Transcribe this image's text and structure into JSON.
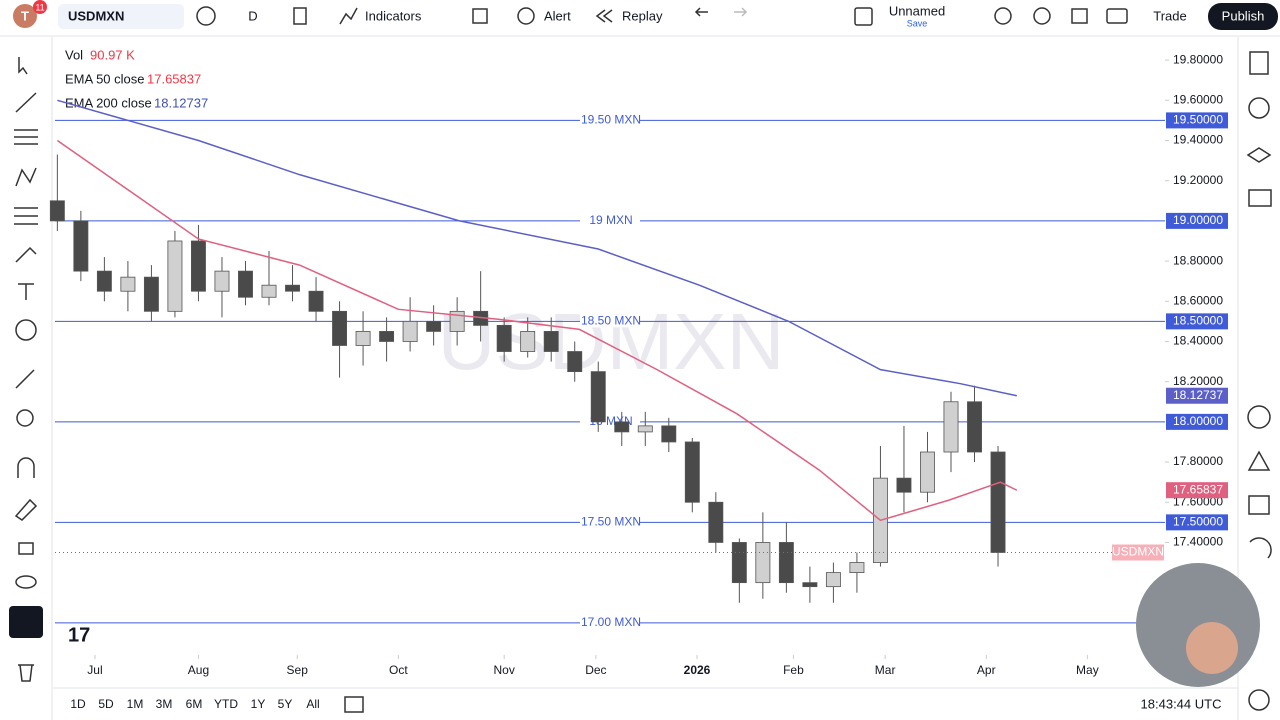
{
  "toolbar": {
    "avatar": "T",
    "badge": "11",
    "symbol": "USDMXN",
    "interval": "D",
    "indicators": "Indicators",
    "alert": "Alert",
    "replay": "Replay",
    "layout_name": "Unnamed",
    "save": "Save",
    "trade": "Trade",
    "publish": "Publish"
  },
  "legend": {
    "vol_label": "Vol",
    "vol_value": "90.97 K",
    "ema50_label": "EMA 50 close",
    "ema50_value": "17.65837",
    "ema200_label": "EMA 200 close",
    "ema200_value": "18.12737"
  },
  "chart_data": {
    "type": "candlestick",
    "watermark": "USDMXN",
    "last_label": "USDMXN",
    "xlim": [
      -0.1,
      47.1
    ],
    "ylim": [
      16.84,
      19.9
    ],
    "xticks": [
      {
        "value": 1.6,
        "label": "Jul"
      },
      {
        "value": 6.0,
        "label": "Aug"
      },
      {
        "value": 10.2,
        "label": "Sep"
      },
      {
        "value": 14.5,
        "label": "Oct"
      },
      {
        "value": 19.0,
        "label": "Nov"
      },
      {
        "value": 22.9,
        "label": "Dec"
      },
      {
        "value": 27.2,
        "label": "2026"
      },
      {
        "value": 31.3,
        "label": "Feb"
      },
      {
        "value": 35.2,
        "label": "Mar"
      },
      {
        "value": 39.5,
        "label": "Apr"
      },
      {
        "value": 43.8,
        "label": "May"
      }
    ],
    "yticks": [
      {
        "value": 19.8,
        "label": "19.80000"
      },
      {
        "value": 19.6,
        "label": "19.60000"
      },
      {
        "value": 19.4,
        "label": "19.40000"
      },
      {
        "value": 19.2,
        "label": "19.20000"
      },
      {
        "value": 18.8,
        "label": "18.80000"
      },
      {
        "value": 18.6,
        "label": "18.60000"
      },
      {
        "value": 18.4,
        "label": "18.40000"
      },
      {
        "value": 18.2,
        "label": "18.20000"
      },
      {
        "value": 17.8,
        "label": "17.80000"
      },
      {
        "value": 17.6,
        "label": "17.60000"
      },
      {
        "value": 17.4,
        "label": "17.40000"
      }
    ],
    "levels": [
      {
        "value": 19.5,
        "label": "19.50 MXN",
        "axis_label": "19.50000"
      },
      {
        "value": 19.0,
        "label": "19 MXN",
        "axis_label": "19.00000"
      },
      {
        "value": 18.5,
        "label": "18.50 MXN",
        "axis_label": "18.50000"
      },
      {
        "value": 18.0,
        "label": "18 MXN",
        "axis_label": "18.00000"
      },
      {
        "value": 17.5,
        "label": "17.50 MXN",
        "axis_label": "17.50000"
      },
      {
        "value": 17.0,
        "label": "17.00 MXN",
        "axis_label": null
      }
    ],
    "level_color": "#3f5bd8",
    "up_color": "#d0d0d0",
    "down_color": "#4a4a4a",
    "open": [
      19.1,
      19.0,
      18.75,
      18.65,
      18.72,
      18.55,
      18.9,
      18.65,
      18.75,
      18.62,
      18.68,
      18.65,
      18.55,
      18.38,
      18.45,
      18.4,
      18.5,
      18.45,
      18.55,
      18.48,
      18.35,
      18.45,
      18.35,
      18.25,
      18.0,
      17.95,
      17.98,
      17.9,
      17.6,
      17.4,
      17.2,
      17.4,
      17.2,
      17.18,
      17.25,
      17.3,
      17.72,
      17.65,
      17.85,
      18.1,
      17.85
    ],
    "high": [
      19.33,
      19.05,
      18.82,
      18.8,
      18.78,
      18.95,
      18.98,
      18.82,
      18.8,
      18.85,
      18.78,
      18.72,
      18.6,
      18.55,
      18.52,
      18.62,
      18.58,
      18.62,
      18.75,
      18.52,
      18.52,
      18.52,
      18.4,
      18.3,
      18.05,
      18.05,
      18.02,
      17.92,
      17.65,
      17.42,
      17.55,
      17.5,
      17.28,
      17.3,
      17.35,
      17.88,
      17.98,
      17.95,
      18.15,
      18.18,
      17.88
    ],
    "low": [
      18.95,
      18.7,
      18.6,
      18.55,
      18.5,
      18.52,
      18.6,
      18.52,
      18.58,
      18.58,
      18.6,
      18.5,
      18.22,
      18.28,
      18.3,
      18.35,
      18.38,
      18.38,
      18.4,
      18.3,
      18.32,
      18.3,
      18.2,
      17.95,
      17.88,
      17.88,
      17.85,
      17.55,
      17.35,
      17.1,
      17.12,
      17.15,
      17.1,
      17.1,
      17.15,
      17.28,
      17.55,
      17.6,
      17.75,
      17.8,
      17.28
    ],
    "close": [
      19.0,
      18.75,
      18.65,
      18.72,
      18.55,
      18.9,
      18.65,
      18.75,
      18.62,
      18.68,
      18.65,
      18.55,
      18.38,
      18.45,
      18.4,
      18.5,
      18.45,
      18.55,
      18.48,
      18.35,
      18.45,
      18.35,
      18.25,
      18.0,
      17.95,
      17.98,
      17.9,
      17.6,
      17.4,
      17.2,
      17.4,
      17.2,
      17.18,
      17.25,
      17.3,
      17.72,
      17.65,
      17.85,
      18.1,
      17.85,
      17.35
    ],
    "ema": [
      {
        "color": "#e0607f",
        "label_value": "17.65837",
        "x": [
          0,
          6,
          10.3,
          14.5,
          18.8,
          22.2,
          25.5,
          28.9,
          32.4,
          35,
          37.9,
          40.1,
          40.8
        ],
        "values": [
          19.4,
          18.91,
          18.78,
          18.56,
          18.51,
          18.46,
          18.26,
          18.04,
          17.76,
          17.51,
          17.61,
          17.7,
          17.66
        ]
      },
      {
        "color": "#5b5fc7",
        "label_value": "18.12737",
        "x": [
          0,
          6,
          10.3,
          17.1,
          23,
          27.3,
          31.1,
          35,
          38.4,
          40.8
        ],
        "values": [
          19.6,
          19.4,
          19.23,
          19.0,
          18.86,
          18.68,
          18.5,
          18.26,
          18.19,
          18.13
        ]
      }
    ]
  },
  "bottom_bar": {
    "ranges": [
      "1D",
      "5D",
      "1M",
      "3M",
      "6M",
      "YTD",
      "1Y",
      "5Y",
      "All"
    ],
    "clock": "18:43:44 UTC"
  }
}
